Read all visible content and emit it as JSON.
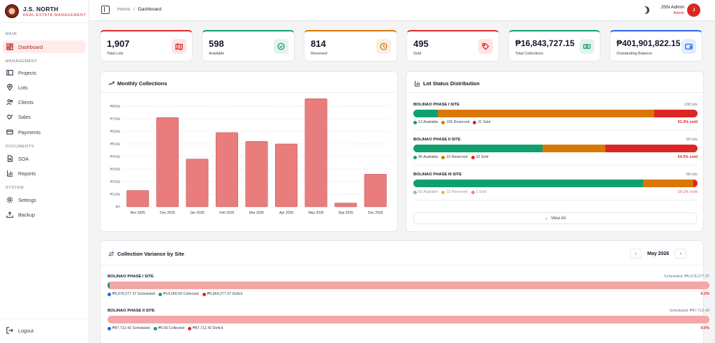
{
  "brand": {
    "name": "J.S. NORTH",
    "subtitle": "REAL ESTATE MANAGEMENT"
  },
  "sidebar": {
    "sections": [
      "MAIN",
      "MANAGEMENT",
      "DOCUMENTS",
      "SYSTEM"
    ],
    "items": [
      {
        "label": "Dashboard",
        "icon": "dashboard-icon",
        "active": true
      },
      {
        "label": "Projects",
        "icon": "projects-icon"
      },
      {
        "label": "Lots",
        "icon": "map-pin-icon"
      },
      {
        "label": "Clients",
        "icon": "users-icon"
      },
      {
        "label": "Sales",
        "icon": "handshake-icon"
      },
      {
        "label": "Payments",
        "icon": "credit-card-icon"
      },
      {
        "label": "SOA",
        "icon": "document-icon"
      },
      {
        "label": "Reports",
        "icon": "bar-chart-icon"
      },
      {
        "label": "Settings",
        "icon": "gear-icon"
      },
      {
        "label": "Backup",
        "icon": "upload-icon"
      }
    ],
    "logout": "Logout"
  },
  "topbar": {
    "breadcrumb": [
      "Home",
      "Dashboard"
    ],
    "separator": "/",
    "user_name": "JSN Admin",
    "user_role": "Admin",
    "avatar_initial": "J"
  },
  "stats": [
    {
      "value": "1,907",
      "label": "Total Lots",
      "accent": "#dc2626",
      "icon": "map-icon"
    },
    {
      "value": "598",
      "label": "Available",
      "accent": "#10a06d",
      "icon": "check-circle-icon"
    },
    {
      "value": "814",
      "label": "Reserved",
      "accent": "#d97706",
      "icon": "clock-icon"
    },
    {
      "value": "495",
      "label": "Sold",
      "accent": "#dc2626",
      "icon": "tag-icon"
    },
    {
      "value": "₱16,843,727.15",
      "label": "Total Collections",
      "accent": "#10a06d",
      "icon": "cash-icon"
    },
    {
      "value": "₱401,901,822.15",
      "label": "Outstanding Balance",
      "accent": "#2563eb",
      "icon": "wallet-icon"
    }
  ],
  "monthly": {
    "title": "Monthly Collections",
    "chart_data": {
      "type": "bar",
      "categories": [
        "Nov 2025",
        "Dec 2025",
        "Jan 2026",
        "Feb 2026",
        "Mar 2026",
        "Apr 2026",
        "May 2026",
        "Sep 2026",
        "Dec 2026"
      ],
      "values": [
        130000,
        710000,
        380000,
        590000,
        520000,
        500000,
        860000,
        30000,
        260000
      ],
      "ylim": [
        0,
        850000
      ],
      "ytick_labels": [
        "₱0",
        "₱100k",
        "₱200k",
        "₱300k",
        "₱400k",
        "₱500k",
        "₱600k",
        "₱700k",
        "₱800k"
      ],
      "grid": true,
      "color": "#e97c7c"
    }
  },
  "lot_status": {
    "title": "Lot Status Distribution",
    "view_all": "View All",
    "sites": [
      {
        "name": "BOLINAO PHASE I SITE",
        "count": "138 lots",
        "available": 12,
        "reserved": 105,
        "sold": 21,
        "legend": [
          "12 Available",
          "105 Reserved",
          "21 Sold"
        ],
        "pct": "91.3% sold"
      },
      {
        "name": "BOLINAO PHASE II SITE",
        "count": "99 lots",
        "available": 45,
        "reserved": 22,
        "sold": 32,
        "legend": [
          "45 Available",
          "22 Reserved",
          "32 Sold"
        ],
        "pct": "54.5% sold"
      },
      {
        "name": "BOLINAO PHASE III SITE",
        "count": "68 lots",
        "available": 55,
        "reserved": 12,
        "sold": 1,
        "legend": [
          "55 Available",
          "12 Reserved",
          "1 Sold"
        ],
        "pct": "19.1% sold"
      }
    ],
    "colors": {
      "available": "#10a06d",
      "reserved": "#d97706",
      "sold": "#dc2626"
    }
  },
  "variance": {
    "title": "Collection Variance by Site",
    "month": "May 2026",
    "prev": "‹",
    "next": "›",
    "sites": [
      {
        "name": "BOLINAO PHASE I SITE",
        "scheduled_label": "Scheduled: ₱6,678,277.37",
        "collected_fraction": 0.002,
        "legend": [
          "₱6,678,277.37 Scheduled",
          "₱14,000.00 Collected",
          "₱6,664,277.37 Deficit"
        ],
        "pct": "0.2%"
      },
      {
        "name": "BOLINAO PHASE II SITE",
        "scheduled_label": "Scheduled: ₱87,712.42",
        "collected_fraction": 0,
        "legend": [
          "₱87,712.42 Scheduled",
          "₱0.00 Collected",
          "₱87,712.42 Deficit"
        ],
        "pct": "0.0%"
      }
    ]
  }
}
